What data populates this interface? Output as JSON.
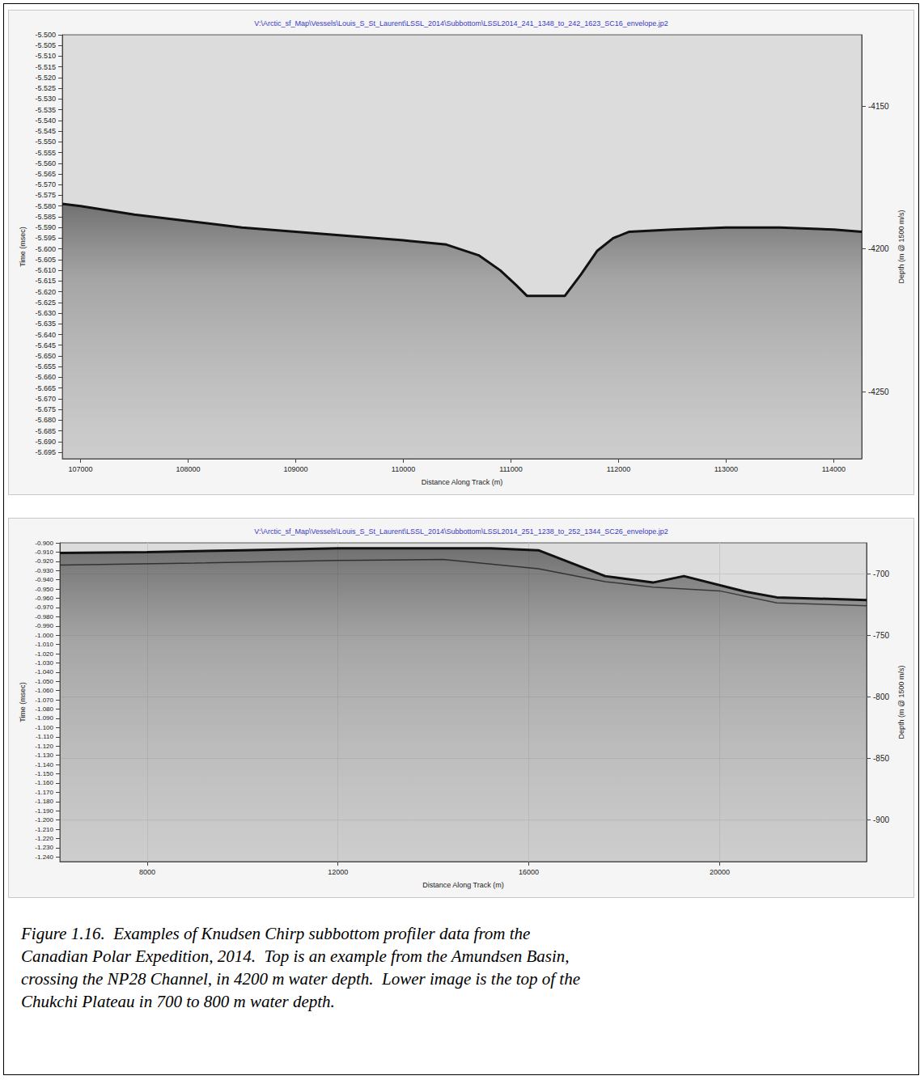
{
  "chart_data": [
    {
      "type": "line",
      "title": "V:\\Arctic_sf_Map\\Vessels\\Louis_S_St_Laurent\\LSSL_2014\\Subbottom\\LSSL2014_241_1348_to_242_1623_SC16_envelope.jp2",
      "x_label": "Distance Along Track (m)",
      "y_label": "Time (msec)",
      "y2_label": "Depth (m @ 1500 m/s)",
      "xlim": [
        106830,
        114260
      ],
      "xticks": [
        107000,
        108000,
        109000,
        110000,
        111000,
        112000,
        113000,
        114000
      ],
      "ylim": [
        -5.698,
        -5.5
      ],
      "yticks": [
        {
          "value": -5.5,
          "label": "-5.500"
        },
        -5.505,
        {
          "value": -5.51,
          "label": "-5.510"
        },
        -5.515,
        {
          "value": -5.52,
          "label": "-5.520"
        },
        -5.525,
        {
          "value": -5.53,
          "label": "-5.530"
        },
        -5.535,
        {
          "value": -5.54,
          "label": "-5.540"
        },
        -5.545,
        {
          "value": -5.55,
          "label": "-5.550"
        },
        -5.555,
        {
          "value": -5.56,
          "label": "-5.560"
        },
        -5.565,
        {
          "value": -5.57,
          "label": "-5.570"
        },
        -5.575,
        {
          "value": -5.58,
          "label": "-5.580"
        },
        -5.585,
        {
          "value": -5.59,
          "label": "-5.590"
        },
        -5.595,
        {
          "value": -5.6,
          "label": "-5.600"
        },
        -5.605,
        {
          "value": -5.61,
          "label": "-5.610"
        },
        -5.615,
        {
          "value": -5.62,
          "label": "-5.620"
        },
        -5.625,
        {
          "value": -5.63,
          "label": "-5.630"
        },
        -5.635,
        {
          "value": -5.64,
          "label": "-5.640"
        },
        -5.645,
        {
          "value": -5.65,
          "label": "-5.650"
        },
        -5.655,
        {
          "value": -5.66,
          "label": "-5.660"
        },
        -5.665,
        {
          "value": -5.67,
          "label": "-5.670"
        },
        -5.675,
        {
          "value": -5.68,
          "label": "-5.680"
        },
        -5.685,
        {
          "value": -5.69,
          "label": "-5.690"
        },
        -5.695
      ],
      "y2lim": [
        -4273.5,
        -4125
      ],
      "y2ticks": [
        -4150,
        -4200,
        -4250
      ],
      "grid": false,
      "series": [
        {
          "color": "#111111",
          "x": [
            106830,
            107000,
            107500,
            108000,
            108500,
            109000,
            109500,
            110000,
            110400,
            110700,
            110900,
            111050,
            111150,
            111500,
            111650,
            111800,
            111950,
            112100,
            112500,
            113000,
            113500,
            114000,
            114260
          ],
          "values": [
            -5.579,
            -5.58,
            -5.584,
            -5.587,
            -5.59,
            -5.592,
            -5.594,
            -5.596,
            -5.598,
            -5.603,
            -5.61,
            -5.617,
            -5.622,
            -5.622,
            -5.612,
            -5.601,
            -5.595,
            -5.592,
            -5.591,
            -5.59,
            -5.59,
            -5.591,
            -5.592
          ]
        }
      ]
    },
    {
      "type": "line",
      "title": "V:\\Arctic_sf_Map\\Vessels\\Louis_S_St_Laurent\\LSSL_2014\\Subbottom\\LSSL2014_251_1238_to_252_1344_SC26_envelope.jp2",
      "x_label": "Distance Along Track (m)",
      "y_label": "Time (msec)",
      "y2_label": "Depth (m @ 1500 m/s)",
      "xlim": [
        6170,
        23080
      ],
      "xticks": [
        8000,
        12000,
        16000,
        20000
      ],
      "ylim": [
        -1.245,
        -0.9
      ],
      "yticks": [
        {
          "value": -0.9,
          "label": "-0.900"
        },
        {
          "value": -0.91,
          "label": "-0.910"
        },
        {
          "value": -0.92,
          "label": "-0.920"
        },
        {
          "value": -0.93,
          "label": "-0.930"
        },
        {
          "value": -0.94,
          "label": "-0.940"
        },
        {
          "value": -0.95,
          "label": "-0.950"
        },
        {
          "value": -0.96,
          "label": "-0.960"
        },
        {
          "value": -0.97,
          "label": "-0.970"
        },
        {
          "value": -0.98,
          "label": "-0.980"
        },
        {
          "value": -0.99,
          "label": "-0.990"
        },
        {
          "value": -1.0,
          "label": "-1.000"
        },
        {
          "value": -1.01,
          "label": "-1.010"
        },
        {
          "value": -1.02,
          "label": "-1.020"
        },
        {
          "value": -1.03,
          "label": "-1.030"
        },
        {
          "value": -1.04,
          "label": "-1.040"
        },
        {
          "value": -1.05,
          "label": "-1.050"
        },
        {
          "value": -1.06,
          "label": "-1.060"
        },
        {
          "value": -1.07,
          "label": "-1.070"
        },
        {
          "value": -1.08,
          "label": "-1.080"
        },
        {
          "value": -1.09,
          "label": "-1.090"
        },
        {
          "value": -1.1,
          "label": "-1.100"
        },
        {
          "value": -1.11,
          "label": "-1.110"
        },
        {
          "value": -1.12,
          "label": "-1.120"
        },
        {
          "value": -1.13,
          "label": "-1.130"
        },
        {
          "value": -1.14,
          "label": "-1.140"
        },
        {
          "value": -1.15,
          "label": "-1.150"
        },
        {
          "value": -1.16,
          "label": "-1.160"
        },
        {
          "value": -1.17,
          "label": "-1.170"
        },
        {
          "value": -1.18,
          "label": "-1.180"
        },
        {
          "value": -1.19,
          "label": "-1.190"
        },
        {
          "value": -1.2,
          "label": "-1.200"
        },
        {
          "value": -1.21,
          "label": "-1.210"
        },
        {
          "value": -1.22,
          "label": "-1.220"
        },
        {
          "value": -1.23,
          "label": "-1.230"
        },
        {
          "value": -1.24,
          "label": "-1.240"
        }
      ],
      "y2lim": [
        -933.75,
        -675
      ],
      "y2ticks": [
        -700,
        -750,
        -800,
        -850,
        -900
      ],
      "grid": true,
      "series": [
        {
          "color": "#111111",
          "x": [
            6170,
            8000,
            10000,
            12000,
            14200,
            15200,
            16200,
            17600,
            18600,
            19250,
            20550,
            21200,
            23080
          ],
          "values": [
            -0.911,
            -0.91,
            -0.908,
            -0.906,
            -0.906,
            -0.906,
            -0.908,
            -0.936,
            -0.943,
            -0.936,
            -0.953,
            -0.959,
            -0.962
          ]
        },
        {
          "color": "#333333",
          "x": [
            6170,
            9000,
            12000,
            14200,
            16200,
            17600,
            18600,
            20000,
            21200,
            23080
          ],
          "values": [
            -0.924,
            -0.922,
            -0.919,
            -0.918,
            -0.928,
            -0.942,
            -0.948,
            -0.952,
            -0.965,
            -0.968
          ]
        }
      ]
    }
  ],
  "caption": [
    "Figure 1.16.  Examples of Knudsen Chirp subbottom profiler data from the",
    "Canadian Polar Expedition, 2014.  Top is an example from the Amundsen Basin,",
    "crossing the NP28 Channel, in 4200 m water depth.  Lower image is the top of the",
    "Chukchi Plateau in 700 to 800 m water depth."
  ]
}
